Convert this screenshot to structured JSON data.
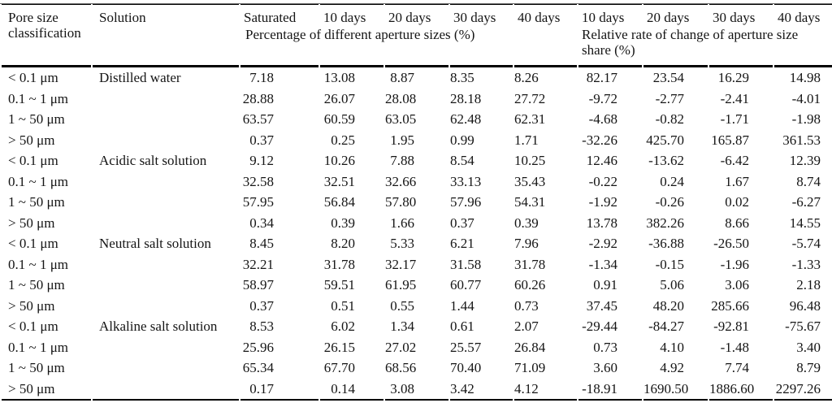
{
  "table": {
    "col1_header": "Pore size classification",
    "col2_header": "Solution",
    "day_headers": [
      "Saturated",
      "10 days",
      "20 days",
      "30 days",
      "40 days",
      "10 days",
      "20 days",
      "30 days",
      "40 days"
    ],
    "subtitle_left": "Percentage of different aperture sizes (%)",
    "subtitle_right_line1": "Relative rate of change of aperture size",
    "subtitle_right_line2": "share (%)",
    "groups": [
      {
        "solution": "Distilled water",
        "rows": [
          {
            "pore_size": "< 0.1 μm",
            "values": [
              "7.18",
              "13.08",
              "8.87",
              "8.35",
              "8.26",
              "82.17",
              "23.54",
              "16.29",
              "14.98"
            ]
          },
          {
            "pore_size": "0.1 ~ 1 μm",
            "values": [
              "28.88",
              "26.07",
              "28.08",
              "28.18",
              "27.72",
              "-9.72",
              "-2.77",
              "-2.41",
              "-4.01"
            ]
          },
          {
            "pore_size": "1 ~ 50 μm",
            "values": [
              "63.57",
              "60.59",
              "63.05",
              "62.48",
              "62.31",
              "-4.68",
              "-0.82",
              "-1.71",
              "-1.98"
            ]
          },
          {
            "pore_size": "> 50 μm",
            "values": [
              "0.37",
              "0.25",
              "1.95",
              "0.99",
              "1.71",
              "-32.26",
              "425.70",
              "165.87",
              "361.53"
            ]
          }
        ]
      },
      {
        "solution": "Acidic salt solution",
        "rows": [
          {
            "pore_size": "< 0.1 μm",
            "values": [
              "9.12",
              "10.26",
              "7.88",
              "8.54",
              "10.25",
              "12.46",
              "-13.62",
              "-6.42",
              "12.39"
            ]
          },
          {
            "pore_size": "0.1 ~ 1 μm",
            "values": [
              "32.58",
              "32.51",
              "32.66",
              "33.13",
              "35.43",
              "-0.22",
              "0.24",
              "1.67",
              "8.74"
            ]
          },
          {
            "pore_size": "1 ~ 50 μm",
            "values": [
              "57.95",
              "56.84",
              "57.80",
              "57.96",
              "54.31",
              "-1.92",
              "-0.26",
              "0.02",
              "-6.27"
            ]
          },
          {
            "pore_size": "> 50 μm",
            "values": [
              "0.34",
              "0.39",
              "1.66",
              "0.37",
              "0.39",
              "13.78",
              "382.26",
              "8.66",
              "14.55"
            ]
          }
        ]
      },
      {
        "solution": "Neutral salt solution",
        "rows": [
          {
            "pore_size": "< 0.1 μm",
            "values": [
              "8.45",
              "8.20",
              "5.33",
              "6.21",
              "7.96",
              "-2.92",
              "-36.88",
              "-26.50",
              "-5.74"
            ]
          },
          {
            "pore_size": "0.1 ~ 1 μm",
            "values": [
              "32.21",
              "31.78",
              "32.17",
              "31.58",
              "31.78",
              "-1.34",
              "-0.15",
              "-1.96",
              "-1.33"
            ]
          },
          {
            "pore_size": "1 ~ 50 μm",
            "values": [
              "58.97",
              "59.51",
              "61.95",
              "60.77",
              "60.26",
              "0.91",
              "5.06",
              "3.06",
              "2.18"
            ]
          },
          {
            "pore_size": "> 50 μm",
            "values": [
              "0.37",
              "0.51",
              "0.55",
              "1.44",
              "0.73",
              "37.45",
              "48.20",
              "285.66",
              "96.48"
            ]
          }
        ]
      },
      {
        "solution": "Alkaline salt solution",
        "rows": [
          {
            "pore_size": "< 0.1 μm",
            "values": [
              "8.53",
              "6.02",
              "1.34",
              "0.61",
              "2.07",
              "-29.44",
              "-84.27",
              "-92.81",
              "-75.67"
            ]
          },
          {
            "pore_size": "0.1 ~ 1 μm",
            "values": [
              "25.96",
              "26.15",
              "27.02",
              "25.57",
              "26.84",
              "0.73",
              "4.10",
              "-1.48",
              "3.40"
            ]
          },
          {
            "pore_size": "1 ~ 50 μm",
            "values": [
              "65.34",
              "67.70",
              "68.56",
              "70.40",
              "71.09",
              "3.60",
              "4.92",
              "7.74",
              "8.79"
            ]
          },
          {
            "pore_size": "> 50 μm",
            "values": [
              "0.17",
              "0.14",
              "3.08",
              "3.42",
              "4.12",
              "-18.91",
              "1690.50",
              "1886.60",
              "2297.26"
            ]
          }
        ]
      }
    ]
  }
}
